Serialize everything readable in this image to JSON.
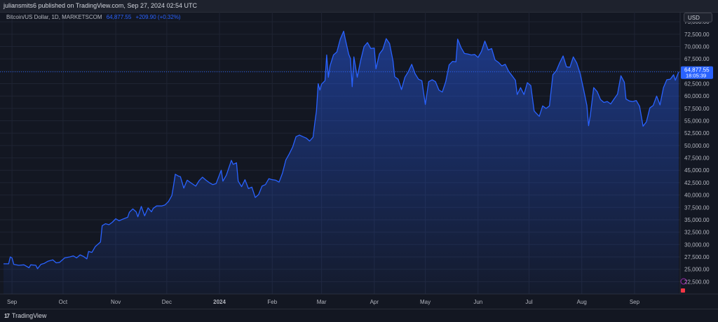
{
  "header": {
    "published": "juliansmits6 published on TradingView.com, Sep 27, 2024 02:54 UTC"
  },
  "legend": {
    "symbol": "Bitcoin/US Dollar, 1D, MARKETSCOM",
    "price": "64,877.55",
    "change": "+209.90 (+0.32%)"
  },
  "currency_button": "USD",
  "last_price_label": {
    "price": "64,877.55",
    "countdown": "18:05:39"
  },
  "footer": {
    "brand": "TradingView"
  },
  "colors": {
    "background": "#131722",
    "line": "#2962ff",
    "grid": "#1f2433",
    "axis_text": "#b2b5be"
  },
  "chart_data": {
    "type": "area",
    "title": "",
    "xlabel": "",
    "ylabel": "",
    "x_range": [
      "2023-08-27",
      "2024-09-27"
    ],
    "ylim": [
      20000,
      77000
    ],
    "grid": true,
    "y_ticks": [
      22500,
      25000,
      27500,
      30000,
      32500,
      35000,
      37500,
      40000,
      42500,
      45000,
      47500,
      50000,
      52500,
      55000,
      57500,
      60000,
      62500,
      65000,
      67500,
      70000,
      72500,
      75000
    ],
    "y_tick_labels": [
      "22,500.00",
      "25,000.00",
      "27,500.00",
      "30,000.00",
      "32,500.00",
      "35,000.00",
      "37,500.00",
      "40,000.00",
      "42,500.00",
      "45,000.00",
      "47,500.00",
      "50,000.00",
      "52,500.00",
      "55,000.00",
      "57,500.00",
      "60,000.00",
      "62,500.00",
      "65,000.00",
      "67,500.00",
      "70,000.00",
      "72,500.00",
      "75,000.00"
    ],
    "x_ticks": [
      {
        "label": "Sep",
        "date": "2023-09-01"
      },
      {
        "label": "Oct",
        "date": "2023-10-01"
      },
      {
        "label": "Nov",
        "date": "2023-11-01"
      },
      {
        "label": "Dec",
        "date": "2023-12-01"
      },
      {
        "label": "2024",
        "date": "2024-01-01",
        "bold": true
      },
      {
        "label": "Feb",
        "date": "2024-02-01"
      },
      {
        "label": "Mar",
        "date": "2024-03-01"
      },
      {
        "label": "Apr",
        "date": "2024-04-01"
      },
      {
        "label": "May",
        "date": "2024-05-01"
      },
      {
        "label": "Jun",
        "date": "2024-06-01"
      },
      {
        "label": "Jul",
        "date": "2024-07-01"
      },
      {
        "label": "Aug",
        "date": "2024-08-01"
      },
      {
        "label": "Sep",
        "date": "2024-09-01"
      }
    ],
    "last_price": 64877.55,
    "series": [
      {
        "points": [
          [
            "2023-08-27",
            26100
          ],
          [
            "2023-08-30",
            26100
          ],
          [
            "2023-08-31",
            27500
          ],
          [
            "2023-09-01",
            27300
          ],
          [
            "2023-09-02",
            26000
          ],
          [
            "2023-09-05",
            25800
          ],
          [
            "2023-09-08",
            25900
          ],
          [
            "2023-09-11",
            25300
          ],
          [
            "2023-09-12",
            25900
          ],
          [
            "2023-09-15",
            25800
          ],
          [
            "2023-09-16",
            25100
          ],
          [
            "2023-09-18",
            26000
          ],
          [
            "2023-09-20",
            26200
          ],
          [
            "2023-09-22",
            26600
          ],
          [
            "2023-09-25",
            26900
          ],
          [
            "2023-09-27",
            26300
          ],
          [
            "2023-09-29",
            26400
          ],
          [
            "2023-10-02",
            27300
          ],
          [
            "2023-10-05",
            27500
          ],
          [
            "2023-10-07",
            27700
          ],
          [
            "2023-10-09",
            27300
          ],
          [
            "2023-10-11",
            27900
          ],
          [
            "2023-10-13",
            27600
          ],
          [
            "2023-10-15",
            27100
          ],
          [
            "2023-10-16",
            28600
          ],
          [
            "2023-10-18",
            28400
          ],
          [
            "2023-10-20",
            29600
          ],
          [
            "2023-10-23",
            30500
          ],
          [
            "2023-10-24",
            33800
          ],
          [
            "2023-10-26",
            34200
          ],
          [
            "2023-10-28",
            34000
          ],
          [
            "2023-10-30",
            34500
          ],
          [
            "2023-11-01",
            35200
          ],
          [
            "2023-11-03",
            34800
          ],
          [
            "2023-11-05",
            35100
          ],
          [
            "2023-11-08",
            35500
          ],
          [
            "2023-11-09",
            36500
          ],
          [
            "2023-11-11",
            37200
          ],
          [
            "2023-11-13",
            36600
          ],
          [
            "2023-11-14",
            35600
          ],
          [
            "2023-11-16",
            37700
          ],
          [
            "2023-11-18",
            35800
          ],
          [
            "2023-11-20",
            37400
          ],
          [
            "2023-11-22",
            36600
          ],
          [
            "2023-11-23",
            37300
          ],
          [
            "2023-11-25",
            37800
          ],
          [
            "2023-11-28",
            37800
          ],
          [
            "2023-11-30",
            38000
          ],
          [
            "2023-12-02",
            38700
          ],
          [
            "2023-12-04",
            39900
          ],
          [
            "2023-12-05",
            42000
          ],
          [
            "2023-12-06",
            44200
          ],
          [
            "2023-12-08",
            43800
          ],
          [
            "2023-12-09",
            43700
          ],
          [
            "2023-12-11",
            41400
          ],
          [
            "2023-12-13",
            43000
          ],
          [
            "2023-12-15",
            42500
          ],
          [
            "2023-12-18",
            41800
          ],
          [
            "2023-12-20",
            42900
          ],
          [
            "2023-12-22",
            43600
          ],
          [
            "2023-12-24",
            43000
          ],
          [
            "2023-12-26",
            42500
          ],
          [
            "2023-12-28",
            42100
          ],
          [
            "2023-12-30",
            42300
          ],
          [
            "2024-01-02",
            45000
          ],
          [
            "2024-01-03",
            42800
          ],
          [
            "2024-01-05",
            44000
          ],
          [
            "2024-01-08",
            47000
          ],
          [
            "2024-01-09",
            46200
          ],
          [
            "2024-01-11",
            46500
          ],
          [
            "2024-01-12",
            42800
          ],
          [
            "2024-01-14",
            41700
          ],
          [
            "2024-01-16",
            43100
          ],
          [
            "2024-01-18",
            41300
          ],
          [
            "2024-01-20",
            41600
          ],
          [
            "2024-01-22",
            39500
          ],
          [
            "2024-01-24",
            40100
          ],
          [
            "2024-01-26",
            41800
          ],
          [
            "2024-01-28",
            42100
          ],
          [
            "2024-01-30",
            43300
          ],
          [
            "2024-02-01",
            43100
          ],
          [
            "2024-02-03",
            43000
          ],
          [
            "2024-02-05",
            42600
          ],
          [
            "2024-02-07",
            44400
          ],
          [
            "2024-02-09",
            47100
          ],
          [
            "2024-02-11",
            48300
          ],
          [
            "2024-02-13",
            49700
          ],
          [
            "2024-02-15",
            51800
          ],
          [
            "2024-02-17",
            52100
          ],
          [
            "2024-02-19",
            51800
          ],
          [
            "2024-02-21",
            51500
          ],
          [
            "2024-02-23",
            50900
          ],
          [
            "2024-02-25",
            51700
          ],
          [
            "2024-02-26",
            54500
          ],
          [
            "2024-02-27",
            57000
          ],
          [
            "2024-02-28",
            62500
          ],
          [
            "2024-02-29",
            61200
          ],
          [
            "2024-03-01",
            62400
          ],
          [
            "2024-03-03",
            63100
          ],
          [
            "2024-03-04",
            68300
          ],
          [
            "2024-03-05",
            63800
          ],
          [
            "2024-03-06",
            66100
          ],
          [
            "2024-03-08",
            68300
          ],
          [
            "2024-03-10",
            68900
          ],
          [
            "2024-03-12",
            71500
          ],
          [
            "2024-03-14",
            73100
          ],
          [
            "2024-03-15",
            71400
          ],
          [
            "2024-03-17",
            68400
          ],
          [
            "2024-03-18",
            67600
          ],
          [
            "2024-03-19",
            61900
          ],
          [
            "2024-03-20",
            67900
          ],
          [
            "2024-03-22",
            63800
          ],
          [
            "2024-03-24",
            67200
          ],
          [
            "2024-03-26",
            70000
          ],
          [
            "2024-03-28",
            70800
          ],
          [
            "2024-03-30",
            69600
          ],
          [
            "2024-04-01",
            69700
          ],
          [
            "2024-04-02",
            65500
          ],
          [
            "2024-04-04",
            68500
          ],
          [
            "2024-04-06",
            69400
          ],
          [
            "2024-04-08",
            71600
          ],
          [
            "2024-04-10",
            70600
          ],
          [
            "2024-04-12",
            67100
          ],
          [
            "2024-04-13",
            63900
          ],
          [
            "2024-04-15",
            63400
          ],
          [
            "2024-04-17",
            61300
          ],
          [
            "2024-04-19",
            63800
          ],
          [
            "2024-04-21",
            64900
          ],
          [
            "2024-04-23",
            66400
          ],
          [
            "2024-04-25",
            64500
          ],
          [
            "2024-04-27",
            63400
          ],
          [
            "2024-04-29",
            63100
          ],
          [
            "2024-04-30",
            60700
          ],
          [
            "2024-05-01",
            58300
          ],
          [
            "2024-05-03",
            62900
          ],
          [
            "2024-05-05",
            63300
          ],
          [
            "2024-05-07",
            62900
          ],
          [
            "2024-05-09",
            61200
          ],
          [
            "2024-05-11",
            60800
          ],
          [
            "2024-05-13",
            62900
          ],
          [
            "2024-05-15",
            66300
          ],
          [
            "2024-05-17",
            67000
          ],
          [
            "2024-05-19",
            66900
          ],
          [
            "2024-05-20",
            71500
          ],
          [
            "2024-05-22",
            69800
          ],
          [
            "2024-05-24",
            68600
          ],
          [
            "2024-05-26",
            68500
          ],
          [
            "2024-05-28",
            68300
          ],
          [
            "2024-05-30",
            68400
          ],
          [
            "2024-06-01",
            67800
          ],
          [
            "2024-06-03",
            69000
          ],
          [
            "2024-06-05",
            71100
          ],
          [
            "2024-06-07",
            69300
          ],
          [
            "2024-06-09",
            69600
          ],
          [
            "2024-06-11",
            67300
          ],
          [
            "2024-06-13",
            66800
          ],
          [
            "2024-06-15",
            66100
          ],
          [
            "2024-06-17",
            66400
          ],
          [
            "2024-06-19",
            65000
          ],
          [
            "2024-06-21",
            64100
          ],
          [
            "2024-06-23",
            63200
          ],
          [
            "2024-06-24",
            60300
          ],
          [
            "2024-06-26",
            61700
          ],
          [
            "2024-06-28",
            60300
          ],
          [
            "2024-06-30",
            62700
          ],
          [
            "2024-07-02",
            62100
          ],
          [
            "2024-07-04",
            57000
          ],
          [
            "2024-07-05",
            56600
          ],
          [
            "2024-07-07",
            55900
          ],
          [
            "2024-07-09",
            58000
          ],
          [
            "2024-07-11",
            57500
          ],
          [
            "2024-07-13",
            58000
          ],
          [
            "2024-07-15",
            64300
          ],
          [
            "2024-07-17",
            65100
          ],
          [
            "2024-07-19",
            66700
          ],
          [
            "2024-07-21",
            68100
          ],
          [
            "2024-07-23",
            65900
          ],
          [
            "2024-07-25",
            65800
          ],
          [
            "2024-07-27",
            67900
          ],
          [
            "2024-07-29",
            66700
          ],
          [
            "2024-07-31",
            64600
          ],
          [
            "2024-08-02",
            61400
          ],
          [
            "2024-08-04",
            58100
          ],
          [
            "2024-08-05",
            54000
          ],
          [
            "2024-08-06",
            56100
          ],
          [
            "2024-08-08",
            61700
          ],
          [
            "2024-08-10",
            60900
          ],
          [
            "2024-08-12",
            59300
          ],
          [
            "2024-08-14",
            58700
          ],
          [
            "2024-08-16",
            58900
          ],
          [
            "2024-08-18",
            58400
          ],
          [
            "2024-08-20",
            59400
          ],
          [
            "2024-08-22",
            60400
          ],
          [
            "2024-08-24",
            64100
          ],
          [
            "2024-08-26",
            62800
          ],
          [
            "2024-08-27",
            59400
          ],
          [
            "2024-08-29",
            59000
          ],
          [
            "2024-08-31",
            58900
          ],
          [
            "2024-09-02",
            59100
          ],
          [
            "2024-09-04",
            57900
          ],
          [
            "2024-09-06",
            53900
          ],
          [
            "2024-09-08",
            54800
          ],
          [
            "2024-09-10",
            57600
          ],
          [
            "2024-09-12",
            58100
          ],
          [
            "2024-09-14",
            60000
          ],
          [
            "2024-09-16",
            58200
          ],
          [
            "2024-09-18",
            61700
          ],
          [
            "2024-09-20",
            63300
          ],
          [
            "2024-09-22",
            63400
          ],
          [
            "2024-09-24",
            64300
          ],
          [
            "2024-09-25",
            63200
          ],
          [
            "2024-09-27",
            64877.55
          ]
        ]
      }
    ]
  }
}
